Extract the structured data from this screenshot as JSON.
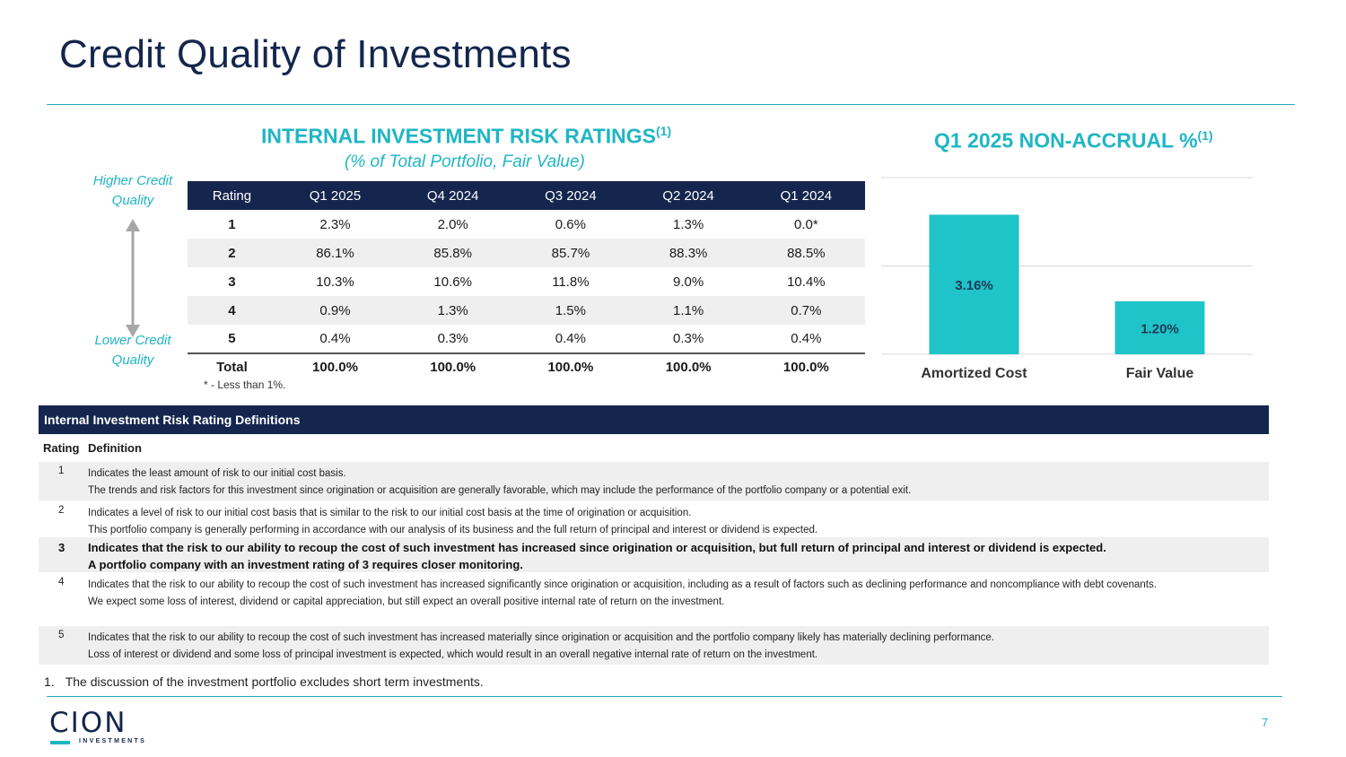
{
  "page": {
    "title": "Credit Quality of Investments",
    "page_number": "7"
  },
  "ratings": {
    "title": "INTERNAL INVESTMENT RISK RATINGS",
    "title_sup": "(1)",
    "subtitle": "(% of Total Portfolio, Fair Value)",
    "higher_label_1": "Higher Credit",
    "higher_label_2": "Quality",
    "lower_label_1": "Lower Credit",
    "lower_label_2": "Quality",
    "columns": [
      "Rating",
      "Q1 2025",
      "Q4 2024",
      "Q3 2024",
      "Q2 2024",
      "Q1 2024"
    ],
    "rows": [
      [
        "1",
        "2.3%",
        "2.0%",
        "0.6%",
        "1.3%",
        "0.0*"
      ],
      [
        "2",
        "86.1%",
        "85.8%",
        "85.7%",
        "88.3%",
        "88.5%"
      ],
      [
        "3",
        "10.3%",
        "10.6%",
        "11.8%",
        "9.0%",
        "10.4%"
      ],
      [
        "4",
        "0.9%",
        "1.3%",
        "1.5%",
        "1.1%",
        "0.7%"
      ],
      [
        "5",
        "0.4%",
        "0.3%",
        "0.4%",
        "0.3%",
        "0.4%"
      ]
    ],
    "total": [
      "Total",
      "100.0%",
      "100.0%",
      "100.0%",
      "100.0%",
      "100.0%"
    ],
    "note": "* - Less than 1%."
  },
  "nonaccrual": {
    "title": "Q1 2025 NON-ACCRUAL %",
    "title_sup": "(1)"
  },
  "chart_data": {
    "type": "bar",
    "title": "Q1 2025 NON-ACCRUAL %",
    "categories": [
      "Amortized Cost",
      "Fair Value"
    ],
    "values": [
      3.16,
      1.2
    ],
    "labels": [
      "3.16%",
      "1.20%"
    ],
    "ylim": [
      0,
      4
    ],
    "grid": true,
    "bar_color": "#1fc4c8"
  },
  "definitions": {
    "header": "Internal Investment Risk Rating Definitions",
    "col_rating": "Rating",
    "col_definition": "Definition",
    "rows": [
      {
        "rating": "1",
        "line1": "Indicates the least amount of risk to our initial cost basis.",
        "line2": "The trends and risk factors for this investment since origination or acquisition are generally favorable, which may include the performance of the portfolio company or a potential exit."
      },
      {
        "rating": "2",
        "line1": "Indicates a level of risk to our initial cost basis that is similar to the risk to our initial cost basis at the time of origination or acquisition.",
        "line2": "This portfolio company is generally performing in accordance with our analysis of its business and the full return of principal and interest or dividend is expected."
      },
      {
        "rating": "3",
        "line1": "Indicates that the risk to our ability to recoup the cost of such investment has increased since origination or acquisition, but full return of principal and interest or dividend is expected.",
        "line2": "A portfolio company with an investment rating of 3 requires closer monitoring."
      },
      {
        "rating": "4",
        "line1": "Indicates that the risk to our ability to recoup the cost of such investment has increased significantly since origination or acquisition, including as a result of factors such as declining performance and noncompliance with debt covenants.",
        "line2": "We expect some loss of interest, dividend or capital appreciation, but still expect an overall positive internal rate of return on the investment."
      },
      {
        "rating": "5",
        "line1": "Indicates that the risk to our ability to recoup the cost of such investment has increased materially since origination or acquisition and the portfolio company likely has materially declining performance.",
        "line2": "Loss of interest or dividend and some loss of principal investment is expected, which would result in an overall negative internal rate of return on the investment."
      }
    ]
  },
  "footnote": {
    "number": "1.",
    "text": "The discussion of the investment portfolio excludes short term investments."
  },
  "logo": {
    "text": "CION",
    "sub": "INVESTMENTS"
  }
}
